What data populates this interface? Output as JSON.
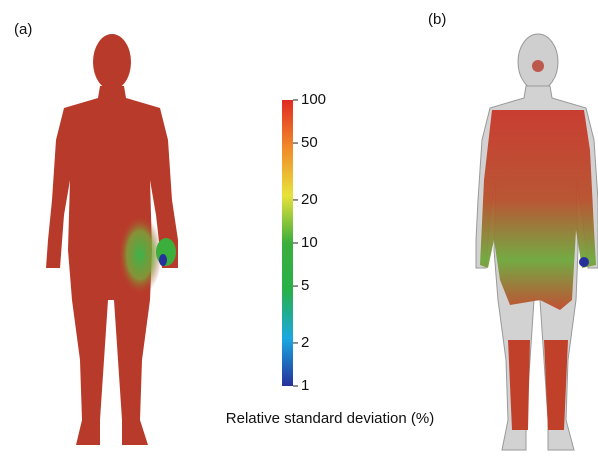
{
  "panels": [
    {
      "label": "(a)"
    },
    {
      "label": "(b)"
    }
  ],
  "colorbar": {
    "label": "Relative standard deviation (%)",
    "scale": "log",
    "lim": [
      1,
      100
    ],
    "ticks": [
      1,
      2,
      5,
      10,
      20,
      50,
      100
    ],
    "colors": [
      "#26309a",
      "#1aa8e0",
      "#28b04a",
      "#3cae3c",
      "#e8e23a",
      "#f08a2a",
      "#e02a22"
    ]
  }
}
